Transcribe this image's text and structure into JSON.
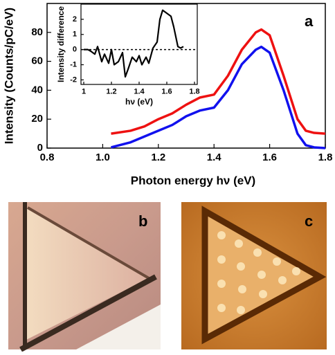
{
  "chart_data": [
    {
      "type": "line",
      "annotation": "a",
      "y_label": "Intensity (Counts/pC/eV)",
      "x_label": "Photon energy hν (eV)",
      "x": [
        1.03,
        1.1,
        1.15,
        1.2,
        1.25,
        1.3,
        1.35,
        1.4,
        1.45,
        1.5,
        1.55,
        1.57,
        1.6,
        1.65,
        1.7,
        1.73,
        1.76,
        1.8
      ],
      "series": [
        {
          "color": "#ee1111",
          "values": [
            10,
            12,
            15,
            20,
            24,
            30,
            35,
            37,
            50,
            68,
            80,
            82,
            78,
            50,
            20,
            12,
            10.5,
            10
          ]
        },
        {
          "color": "#1111ee",
          "values": [
            0.5,
            4,
            8,
            12,
            16,
            22,
            26,
            28,
            40,
            58,
            68,
            70,
            66,
            40,
            10,
            2,
            0.5,
            0
          ]
        }
      ],
      "xlim": [
        0.8,
        1.8
      ],
      "ylim": [
        0,
        100
      ],
      "xticks": [
        0.8,
        {
          "value": 1,
          "label": "1.0"
        },
        1.2,
        1.4,
        1.6,
        1.8
      ],
      "yticks": [
        0,
        20,
        40,
        60,
        80
      ]
    },
    {
      "type": "line",
      "y_label": "Intensity difference",
      "x_label": "hν (eV)",
      "x": [
        1.0,
        1.03,
        1.05,
        1.08,
        1.1,
        1.13,
        1.15,
        1.18,
        1.2,
        1.22,
        1.25,
        1.28,
        1.3,
        1.32,
        1.35,
        1.38,
        1.4,
        1.42,
        1.45,
        1.47,
        1.5,
        1.53,
        1.55,
        1.57,
        1.6,
        1.63,
        1.65,
        1.68,
        1.7,
        1.72
      ],
      "series": [
        {
          "color": "#000000",
          "values": [
            0,
            0,
            -0.1,
            -0.3,
            0.2,
            -0.8,
            -0.3,
            -0.9,
            0,
            -1,
            -0.8,
            -0.2,
            -1.8,
            -1.3,
            -0.5,
            -0.8,
            -0.4,
            -1,
            -0.5,
            -0.9,
            0.1,
            0.5,
            2,
            2.6,
            2.4,
            2.2,
            1.5,
            0.2,
            0.1,
            0.2
          ]
        }
      ],
      "reference_line": 0,
      "xlim": [
        0.98,
        1.82
      ],
      "ylim": [
        -2.3,
        3
      ],
      "xticks": [
        1,
        1.2,
        1.4,
        1.6,
        1.8
      ],
      "yticks": [
        -2,
        -1,
        0,
        1,
        2
      ]
    }
  ],
  "image_panels": [
    {
      "label": "b"
    },
    {
      "label": "c"
    }
  ]
}
